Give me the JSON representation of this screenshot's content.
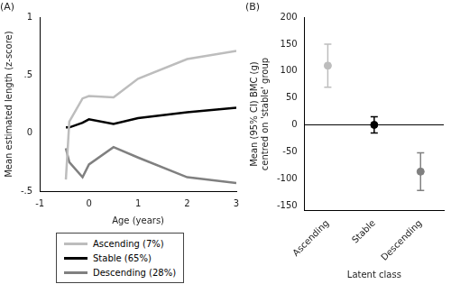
{
  "chart_data": [
    {
      "type": "line",
      "title": "(A)",
      "xlabel": "Age (years)",
      "ylabel": "Mean estimated length (z-score)",
      "x": [
        -0.47,
        -0.4,
        -0.13,
        0,
        0.5,
        1,
        2,
        3
      ],
      "series": [
        {
          "name": "Ascending (7%)",
          "color": "#bdbdbd",
          "values": [
            -0.4,
            0.1,
            0.3,
            0.32,
            0.31,
            0.47,
            0.64,
            0.71
          ]
        },
        {
          "name": "Stable (65%)",
          "color": "#000000",
          "values": [
            0.05,
            0.05,
            0.09,
            0.12,
            0.08,
            0.13,
            0.18,
            0.22
          ]
        },
        {
          "name": "Descending (28%)",
          "color": "#808080",
          "values": [
            -0.13,
            -0.25,
            -0.38,
            -0.27,
            -0.12,
            -0.21,
            -0.38,
            -0.43
          ]
        }
      ],
      "xlim": [
        -1,
        3
      ],
      "xticks": [
        -1,
        0,
        1,
        2,
        3
      ],
      "ylim": [
        -0.5,
        1
      ],
      "yticks": [
        {
          "value": -0.5,
          "label": "-.5"
        },
        0,
        {
          "value": 0.5,
          "label": ".5"
        },
        1
      ],
      "grid": false,
      "legend": "bottom"
    },
    {
      "type": "scatter",
      "title": "(B)",
      "xlabel": "Latent class",
      "ylabel": [
        "Mean (95% CI) BMC (g)",
        "centred on 'stable' group"
      ],
      "categories": [
        "Ascending",
        "Stable",
        "Descending"
      ],
      "values": [
        110,
        0,
        -87
      ],
      "ci_low": [
        70,
        -15,
        -122
      ],
      "ci_high": [
        150,
        15,
        -52
      ],
      "colors": [
        "#bdbdbd",
        "#000000",
        "#808080"
      ],
      "marker": "circle",
      "reference_line": 0,
      "ylim": [
        -160,
        200
      ],
      "yticks": [
        -150,
        -100,
        -50,
        0,
        50,
        100,
        150,
        200
      ],
      "grid": false
    }
  ]
}
